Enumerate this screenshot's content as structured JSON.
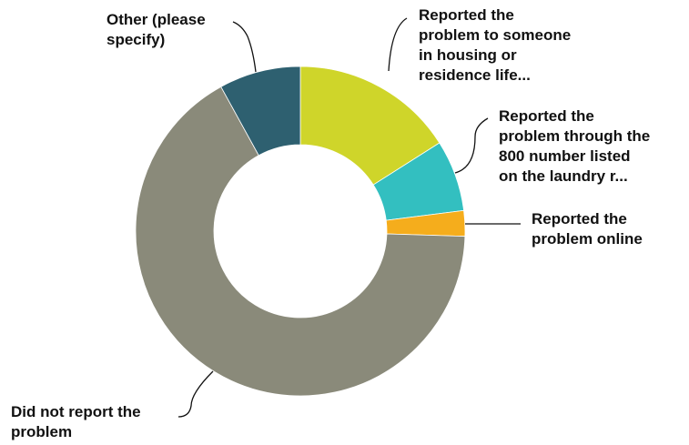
{
  "chart_data": {
    "type": "pie",
    "variant": "donut",
    "slices": [
      {
        "label_lines": [
          "Reported the",
          "problem to someone",
          "in housing or",
          "residence life..."
        ],
        "value": 16,
        "color": "#cfd52a"
      },
      {
        "label_lines": [
          "Reported the",
          "problem through the",
          "800 number listed",
          "on the laundry r..."
        ],
        "value": 7,
        "color": "#33bfc0"
      },
      {
        "label_lines": [
          "Reported the",
          "problem online"
        ],
        "value": 2.5,
        "color": "#f5ad1c"
      },
      {
        "label_lines": [
          "Did not report the",
          "problem"
        ],
        "value": 66.5,
        "color": "#8a8a7a"
      },
      {
        "label_lines": [
          "Other (please",
          "specify)"
        ],
        "value": 8,
        "color": "#2e6070"
      }
    ]
  }
}
